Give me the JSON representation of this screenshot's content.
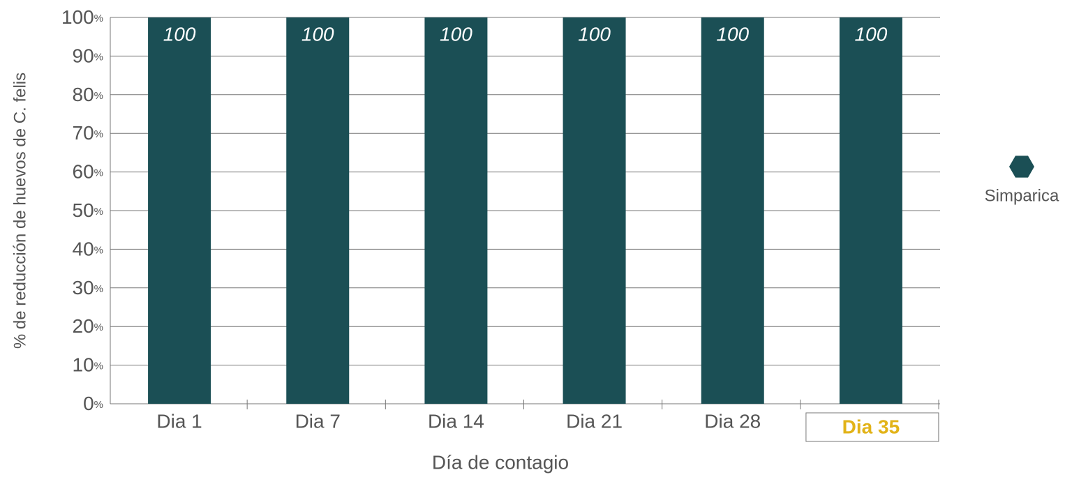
{
  "chart_data": {
    "type": "bar",
    "categories": [
      "Dia 1",
      "Dia 7",
      "Dia 14",
      "Dia 21",
      "Dia 28",
      "Dia 35"
    ],
    "series": [
      {
        "name": "Simparica",
        "color": "#1b4f55",
        "values": [
          100,
          100,
          100,
          100,
          100,
          100
        ]
      }
    ],
    "ylim": [
      0,
      100
    ],
    "yticks": [
      {
        "value": 0,
        "label": "0%"
      },
      {
        "value": 10,
        "label": "10%"
      },
      {
        "value": 20,
        "label": "20%"
      },
      {
        "value": 30,
        "label": "30%"
      },
      {
        "value": 40,
        "label": "40%"
      },
      {
        "value": 50,
        "label": "50%"
      },
      {
        "value": 60,
        "label": "60%"
      },
      {
        "value": 70,
        "label": "70%"
      },
      {
        "value": 80,
        "label": "80%"
      },
      {
        "value": 90,
        "label": "90%"
      },
      {
        "value": 100,
        "label": "100%"
      }
    ],
    "xlabel": "Día de contagio",
    "ylabel": "% de reducción de huevos de C. felis",
    "grid": true,
    "legend": "right",
    "highlight_index": 5,
    "highlight_color": "#e2b318"
  }
}
